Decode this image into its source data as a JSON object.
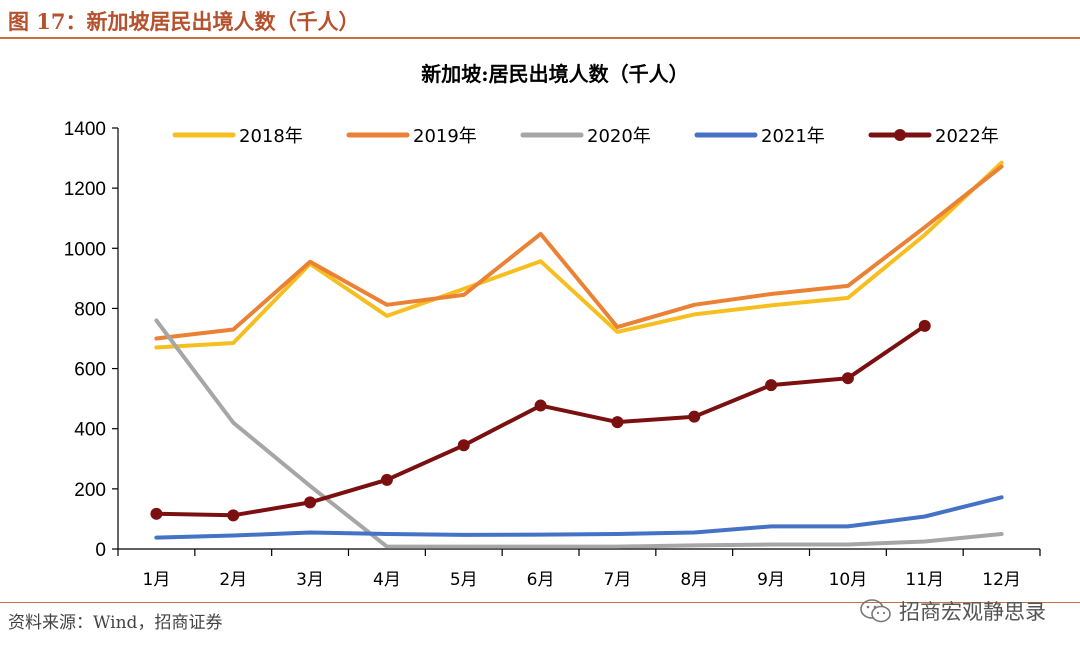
{
  "header": {
    "figure_label": "图 17：新加坡居民出境人数（千人）"
  },
  "source": "资料来源：Wind，招商证券",
  "watermark": {
    "text": "招商宏观静思录",
    "icon": "wechat-icon"
  },
  "chart_data": {
    "type": "line",
    "title": "新加坡:居民出境人数（千人）",
    "xlabel": "",
    "ylabel": "",
    "categories": [
      "1月",
      "2月",
      "3月",
      "4月",
      "5月",
      "6月",
      "7月",
      "8月",
      "9月",
      "10月",
      "11月",
      "12月"
    ],
    "ylim": [
      0,
      1400
    ],
    "yticks": [
      0,
      200,
      400,
      600,
      800,
      1000,
      1200,
      1400
    ],
    "grid": false,
    "legend_position": "top",
    "series": [
      {
        "name": "2018年",
        "color": "#f6bf1f",
        "markers": false,
        "values": [
          670,
          685,
          948,
          775,
          865,
          957,
          722,
          780,
          810,
          835,
          1045,
          1285
        ]
      },
      {
        "name": "2019年",
        "color": "#ea8135",
        "markers": false,
        "values": [
          700,
          730,
          955,
          812,
          845,
          1048,
          738,
          812,
          848,
          875,
          1070,
          1272
        ]
      },
      {
        "name": "2020年",
        "color": "#a6a6a6",
        "markers": false,
        "values": [
          760,
          420,
          210,
          8,
          8,
          8,
          8,
          12,
          15,
          15,
          25,
          50
        ]
      },
      {
        "name": "2021年",
        "color": "#4472c4",
        "markers": false,
        "values": [
          38,
          45,
          55,
          50,
          47,
          48,
          50,
          55,
          75,
          75,
          108,
          172
        ]
      },
      {
        "name": "2022年",
        "color": "#7b1010",
        "markers": true,
        "values": [
          117,
          112,
          155,
          230,
          345,
          477,
          422,
          440,
          545,
          568,
          742,
          null
        ]
      }
    ]
  }
}
